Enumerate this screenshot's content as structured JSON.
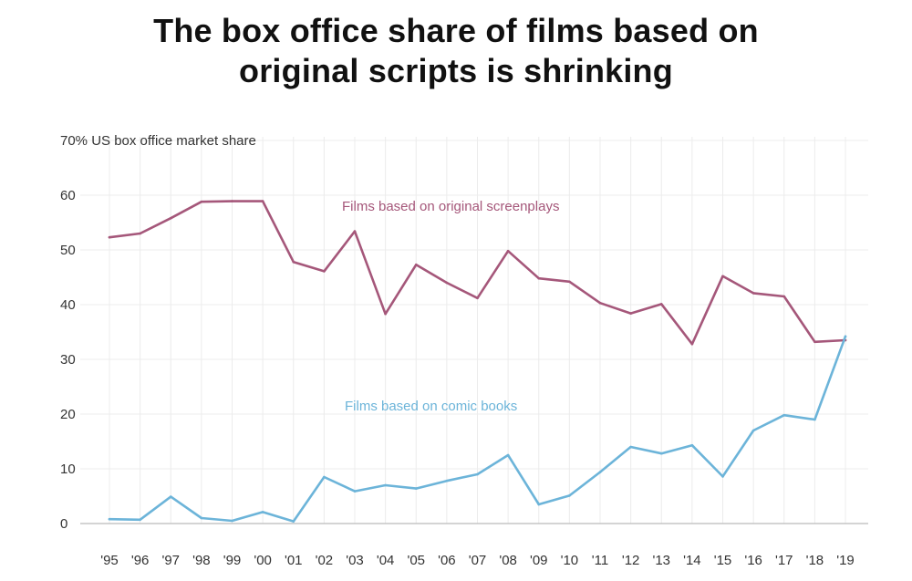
{
  "title_lines": [
    "The box office share of films based on",
    "original scripts is shrinking"
  ],
  "chart_data": {
    "type": "line",
    "title": "The box office share of films based on original scripts is shrinking",
    "ylabel": "US box office market share",
    "y_top_label": "70%",
    "ylim": [
      0,
      70
    ],
    "yticks": [
      0,
      10,
      20,
      30,
      40,
      50,
      60
    ],
    "categories": [
      "'95",
      "'96",
      "'97",
      "'98",
      "'99",
      "'00",
      "'01",
      "'02",
      "'03",
      "'04",
      "'05",
      "'06",
      "'07",
      "'08",
      "'09",
      "'10",
      "'11",
      "'12",
      "'13",
      "'14",
      "'15",
      "'16",
      "'17",
      "'18",
      "'19"
    ],
    "grid": true,
    "series": [
      {
        "name": "Films based on original screenplays",
        "color": "#a5577a",
        "values": [
          52.3,
          53.0,
          55.8,
          58.8,
          58.9,
          58.9,
          47.8,
          46.1,
          53.4,
          38.3,
          47.3,
          44.0,
          41.2,
          49.8,
          44.8,
          44.2,
          40.3,
          38.4,
          40.1,
          32.8,
          45.2,
          42.1,
          41.5,
          33.2,
          33.5
        ]
      },
      {
        "name": "Films based on comic books",
        "color": "#6cb4d9",
        "values": [
          0.8,
          0.7,
          4.9,
          1.0,
          0.5,
          2.1,
          0.4,
          8.5,
          5.9,
          7.0,
          6.4,
          7.8,
          9.0,
          12.5,
          3.5,
          5.1,
          9.4,
          14.0,
          12.8,
          14.3,
          8.6,
          17.0,
          19.8,
          19.0,
          34.2
        ]
      }
    ]
  }
}
